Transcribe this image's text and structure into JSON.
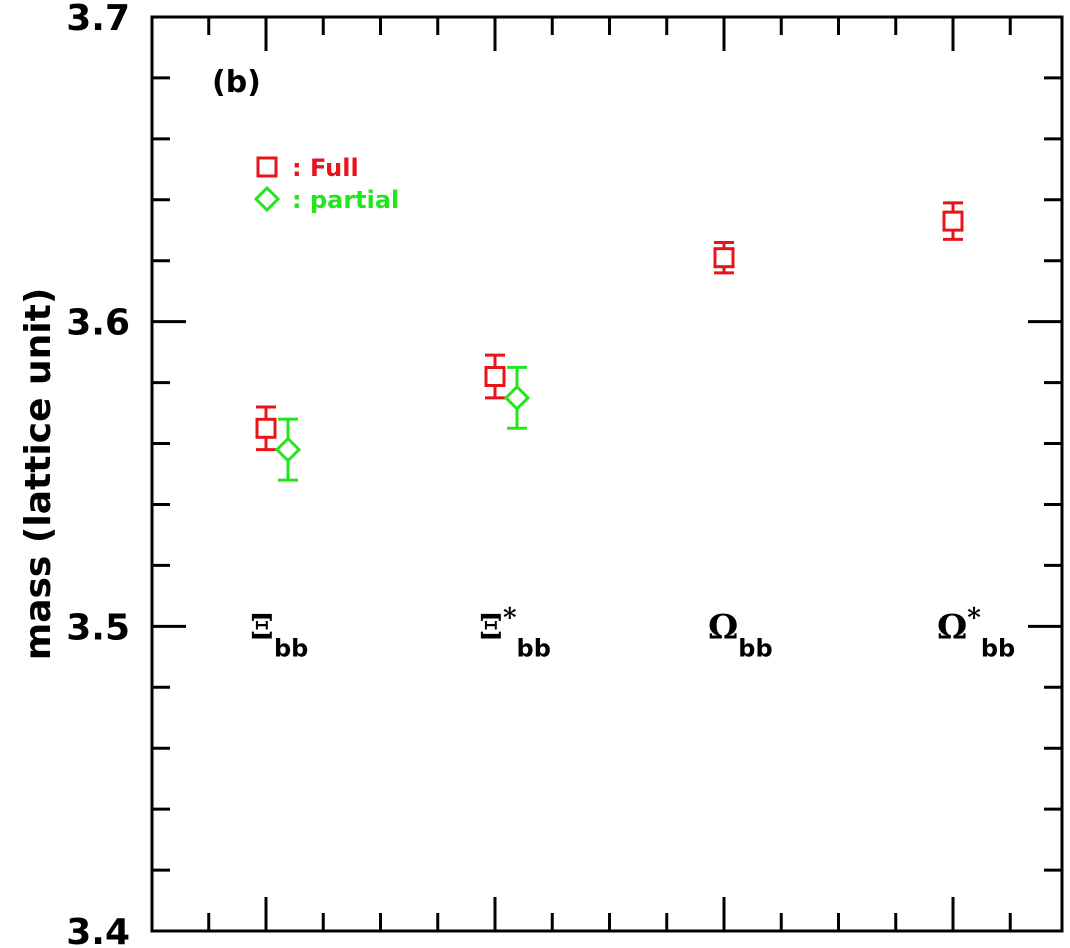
{
  "chart_data": {
    "type": "scatter",
    "panel_label": "(b)",
    "ylabel": "mass (lattice unit)",
    "xlabel": "",
    "ylim": [
      3.4,
      3.7
    ],
    "yticks": [
      3.4,
      3.5,
      3.6,
      3.7
    ],
    "ytick_labels": [
      "3.4",
      "3.5",
      "3.6",
      "3.7"
    ],
    "categories": [
      {
        "base": "Ξ",
        "star": "",
        "sub": "bb"
      },
      {
        "base": "Ξ",
        "star": "*",
        "sub": "bb"
      },
      {
        "base": "Ω",
        "star": "",
        "sub": "bb"
      },
      {
        "base": "Ω",
        "star": "*",
        "sub": "bb"
      }
    ],
    "series": [
      {
        "name": "Full",
        "legend_text": ": Full",
        "color": "#e8141b",
        "marker": "square",
        "x": [
          1,
          2,
          3,
          4
        ],
        "y": [
          3.565,
          3.582,
          3.621,
          3.633
        ],
        "err": [
          0.007,
          0.007,
          0.005,
          0.006
        ]
      },
      {
        "name": "partial",
        "legend_text": ": partial",
        "color": "#22e61c",
        "marker": "diamond",
        "x": [
          1,
          2
        ],
        "y": [
          3.558,
          3.575
        ],
        "err": [
          0.01,
          0.01
        ]
      }
    ],
    "grid": false,
    "legend_position": "top-left"
  }
}
